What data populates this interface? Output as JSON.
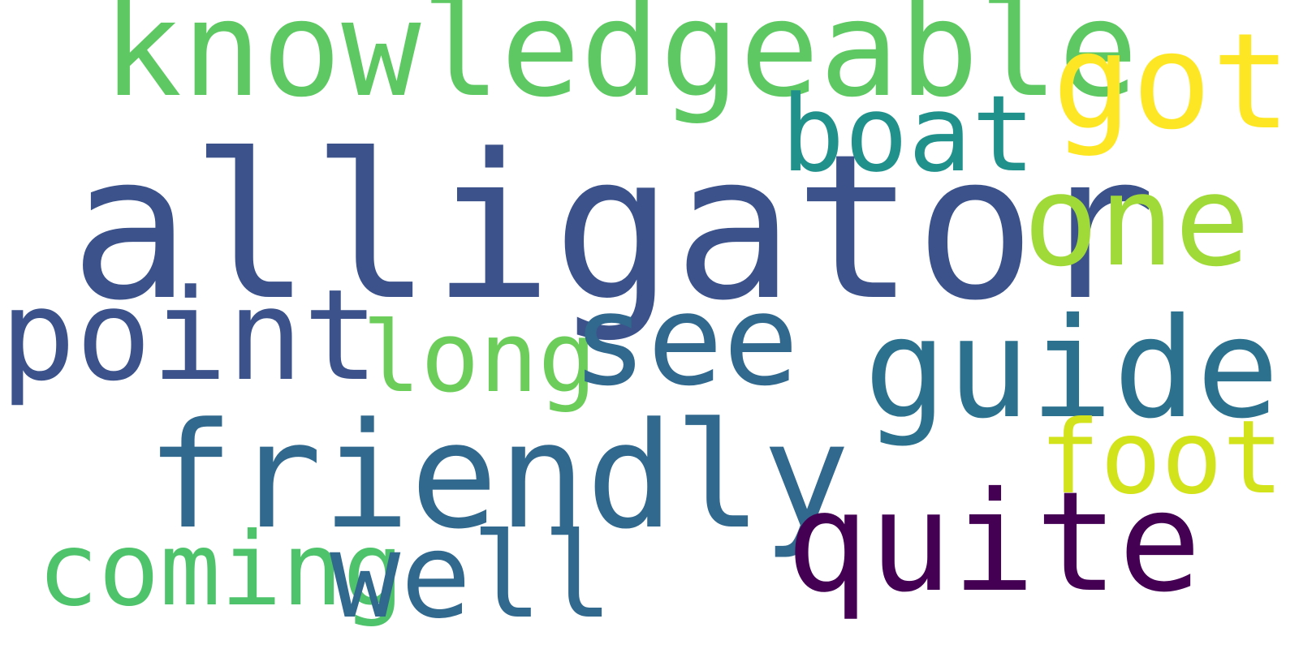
{
  "words": {
    "alligator": {
      "text": "alligator",
      "color": "#3b528b"
    },
    "knowledgeable": {
      "text": "knowledgeable",
      "color": "#5ec962"
    },
    "got": {
      "text": "got",
      "color": "#fde725"
    },
    "one": {
      "text": "one",
      "color": "#a0da39"
    },
    "boat": {
      "text": "boat",
      "color": "#21918c"
    },
    "point": {
      "text": "point",
      "color": "#3b528b"
    },
    "long": {
      "text": "long",
      "color": "#6ccd5a"
    },
    "see": {
      "text": "see",
      "color": "#31688e"
    },
    "guide": {
      "text": "guide",
      "color": "#2c728e"
    },
    "friendly": {
      "text": "friendly",
      "color": "#31688e"
    },
    "foot": {
      "text": "foot",
      "color": "#d2e21b"
    },
    "quite": {
      "text": "quite",
      "color": "#440154"
    },
    "coming": {
      "text": "coming",
      "color": "#4ec36b"
    },
    "well": {
      "text": "well",
      "color": "#31688e"
    }
  }
}
